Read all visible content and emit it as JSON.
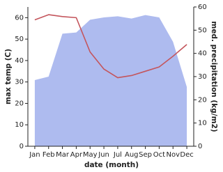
{
  "chart_data": {
    "type": "combo",
    "categories": [
      "Jan",
      "Feb",
      "Mar",
      "Apr",
      "May",
      "Jun",
      "Jul",
      "Aug",
      "Sep",
      "Oct",
      "Nov",
      "Dec"
    ],
    "xlabel": "date (month)",
    "ylabel": "max temp (C)",
    "y2label": "med. precipitation (kg/m2)",
    "ylim": [
      0,
      65
    ],
    "yticks": [
      0,
      10,
      20,
      30,
      40,
      50,
      60
    ],
    "y2lim": [
      0,
      60
    ],
    "y2ticks": [
      0,
      10,
      20,
      30,
      40,
      50,
      60
    ],
    "series": [
      {
        "name": "med. precipitation",
        "type": "area",
        "axis": "y2",
        "color": "#aebbef",
        "values": [
          28.5,
          30,
          48.5,
          49,
          54.5,
          55.5,
          56,
          55,
          56.5,
          55.5,
          45,
          25.5
        ]
      },
      {
        "name": "max temp",
        "type": "line",
        "axis": "y",
        "color": "#c4555c",
        "values": [
          59,
          61.4,
          60.5,
          60,
          44,
          36,
          32,
          33,
          35,
          37,
          42,
          47.5
        ]
      }
    ]
  }
}
